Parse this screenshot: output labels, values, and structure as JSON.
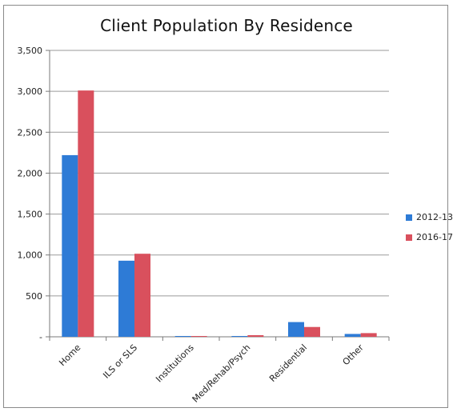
{
  "chart_data": {
    "type": "bar",
    "title": "Client Population By Residence",
    "categories": [
      "Home",
      "ILS or SLS",
      "Institutions",
      "Med/Rehab/Psych",
      "Residential",
      "Other"
    ],
    "series": [
      {
        "name": "2012-13",
        "color": "#2e7bd6",
        "values": [
          2220,
          930,
          2,
          8,
          180,
          35
        ]
      },
      {
        "name": "2016-17",
        "color": "#d9505d",
        "values": [
          3010,
          1015,
          5,
          20,
          120,
          45
        ]
      }
    ],
    "ylim": [
      0,
      3500
    ],
    "yticks": [
      0,
      500,
      1000,
      1500,
      2000,
      2500,
      3000,
      3500
    ],
    "ytick_labels": [
      "-",
      "500",
      "1,000",
      "1,500",
      "2,000",
      "2,500",
      "3,000",
      "3,500"
    ],
    "xlabel": "",
    "ylabel": "",
    "grid": true,
    "legend_position": "right"
  }
}
